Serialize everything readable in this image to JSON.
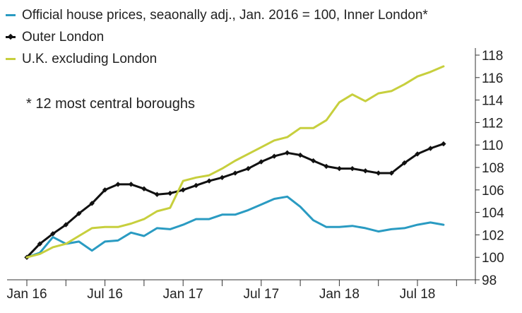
{
  "chart_data": {
    "type": "line",
    "note": "* 12 most central boroughs",
    "ylim": [
      98,
      118
    ],
    "yticks": [
      "98",
      "100",
      "102",
      "104",
      "106",
      "108",
      "110",
      "112",
      "114",
      "116",
      "118"
    ],
    "xticks": [
      "Jan 16",
      "Jul 16",
      "Jan 17",
      "Jul 17",
      "Jan 18",
      "Jul 18"
    ],
    "xlim_months": [
      0,
      36
    ],
    "series": [
      {
        "name": "Official house prices, seaonally adj., Jan. 2016 = 100, Inner London*",
        "color": "#2a9bc2",
        "markers": false,
        "values": [
          100.0,
          100.4,
          101.8,
          101.2,
          101.4,
          100.6,
          101.4,
          101.5,
          102.2,
          101.9,
          102.6,
          102.5,
          102.9,
          103.4,
          103.4,
          103.8,
          103.8,
          104.2,
          104.7,
          105.2,
          105.4,
          104.5,
          103.3,
          102.7,
          102.7,
          102.8,
          102.6,
          102.3,
          102.5,
          102.6,
          102.9,
          103.1,
          102.9
        ]
      },
      {
        "name": "Outer London",
        "color": "#111111",
        "markers": true,
        "values": [
          100.0,
          101.2,
          102.1,
          102.9,
          103.9,
          104.8,
          106.0,
          106.5,
          106.5,
          106.1,
          105.6,
          105.7,
          106.0,
          106.4,
          106.8,
          107.1,
          107.5,
          107.9,
          108.5,
          109.0,
          109.3,
          109.1,
          108.6,
          108.1,
          107.9,
          107.9,
          107.7,
          107.5,
          107.5,
          108.4,
          109.2,
          109.7,
          110.1
        ]
      },
      {
        "name": "U.K. excluding London",
        "color": "#c7cf3d",
        "markers": false,
        "values": [
          100.0,
          100.3,
          100.9,
          101.2,
          101.9,
          102.6,
          102.7,
          102.7,
          103.0,
          103.4,
          104.1,
          104.4,
          106.8,
          107.1,
          107.3,
          107.9,
          108.6,
          109.2,
          109.8,
          110.4,
          110.7,
          111.5,
          111.5,
          112.2,
          113.8,
          114.5,
          113.9,
          114.6,
          114.8,
          115.4,
          116.1,
          116.5,
          117.0
        ]
      }
    ]
  }
}
